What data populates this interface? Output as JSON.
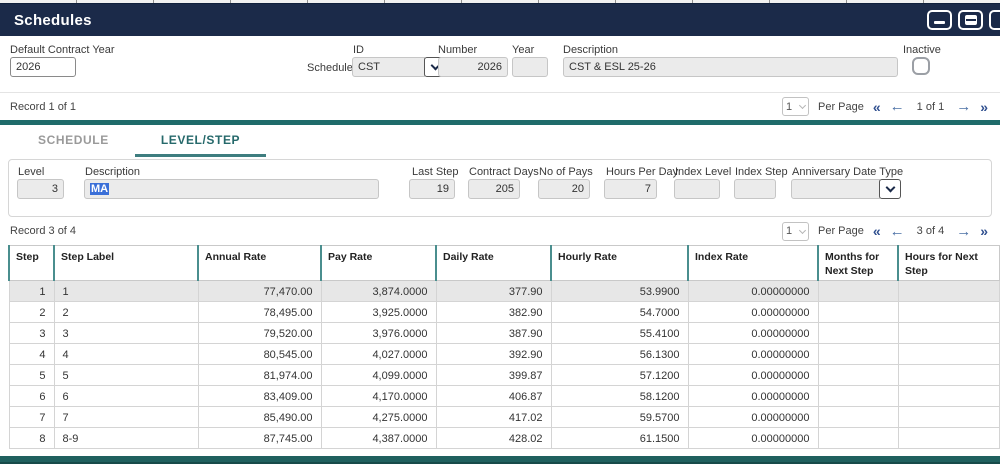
{
  "window": {
    "title": "Schedules"
  },
  "colors": {
    "titlebar_navy": "#1b2a49",
    "accent_teal": "#1f6b6a",
    "selection_blue": "#3a6fd8",
    "pagination_chevron_blue": "#2f4f8f",
    "pagination_arrow_blue": "#4a6fa5",
    "selected_row_gray": "#e7e7e7"
  },
  "icons": {
    "first": "«",
    "prev": "←",
    "next": "→",
    "last": "»"
  },
  "form": {
    "default_contract_year": {
      "label": "Default Contract Year",
      "value": "2026"
    },
    "schedule_label": "Schedule",
    "id": {
      "label": "ID",
      "value": "CST"
    },
    "number": {
      "label": "Number",
      "value": "2026"
    },
    "year": {
      "label": "Year",
      "value": ""
    },
    "description": {
      "label": "Description",
      "value": "CST & ESL 25-26"
    },
    "inactive": {
      "label": "Inactive",
      "checked": false
    }
  },
  "record_bar_top": {
    "text": "Record 1 of 1",
    "per_page_value": "1",
    "per_page_label": "Per Page",
    "position": "1 of 1"
  },
  "tabs": [
    {
      "label": "SCHEDULE",
      "active": false
    },
    {
      "label": "LEVEL/STEP",
      "active": true
    }
  ],
  "level_form": {
    "level": {
      "label": "Level",
      "value": "3"
    },
    "description": {
      "label": "Description",
      "value": "MA",
      "text_selected": true
    },
    "last_step": {
      "label": "Last Step",
      "value": "19"
    },
    "contract_days": {
      "label": "Contract Days",
      "value": "205"
    },
    "no_of_pays": {
      "label": "No of Pays",
      "value": "20"
    },
    "hours_per_day": {
      "label": "Hours Per Day",
      "value": "7"
    },
    "index_level": {
      "label": "Index Level",
      "value": ""
    },
    "index_step": {
      "label": "Index Step",
      "value": ""
    },
    "anniversary_date_type": {
      "label": "Anniversary Date Type",
      "value": ""
    }
  },
  "record_bar_table": {
    "text": "Record 3 of 4",
    "per_page_value": "1",
    "per_page_label": "Per Page",
    "position": "3 of 4"
  },
  "table": {
    "columns": [
      "Step",
      "Step Label",
      "Annual Rate",
      "Pay Rate",
      "Daily Rate",
      "Hourly Rate",
      "Index Rate",
      "Months for Next Step",
      "Hours for Next Step"
    ],
    "numeric_columns": [
      0,
      2,
      3,
      4,
      5,
      6
    ],
    "selected_row_index": 0,
    "rows": [
      [
        "1",
        "1",
        "77,470.00",
        "3,874.0000",
        "377.90",
        "53.9900",
        "0.00000000",
        "",
        ""
      ],
      [
        "2",
        "2",
        "78,495.00",
        "3,925.0000",
        "382.90",
        "54.7000",
        "0.00000000",
        "",
        ""
      ],
      [
        "3",
        "3",
        "79,520.00",
        "3,976.0000",
        "387.90",
        "55.4100",
        "0.00000000",
        "",
        ""
      ],
      [
        "4",
        "4",
        "80,545.00",
        "4,027.0000",
        "392.90",
        "56.1300",
        "0.00000000",
        "",
        ""
      ],
      [
        "5",
        "5",
        "81,974.00",
        "4,099.0000",
        "399.87",
        "57.1200",
        "0.00000000",
        "",
        ""
      ],
      [
        "6",
        "6",
        "83,409.00",
        "4,170.0000",
        "406.87",
        "58.1200",
        "0.00000000",
        "",
        ""
      ],
      [
        "7",
        "7",
        "85,490.00",
        "4,275.0000",
        "417.02",
        "59.5700",
        "0.00000000",
        "",
        ""
      ],
      [
        "8",
        "8-9",
        "87,745.00",
        "4,387.0000",
        "428.02",
        "61.1500",
        "0.00000000",
        "",
        ""
      ]
    ]
  }
}
